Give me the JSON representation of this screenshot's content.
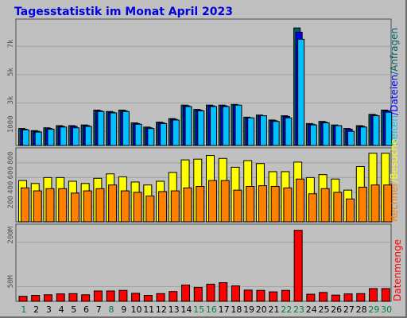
{
  "chart_data": {
    "type": "bar",
    "title": "Tagesstatistik im Monat April 2023",
    "x": [
      "1",
      "2",
      "3",
      "4",
      "5",
      "6",
      "7",
      "8",
      "9",
      "10",
      "11",
      "12",
      "13",
      "14",
      "15",
      "16",
      "17",
      "18",
      "19",
      "20",
      "21",
      "22",
      "23",
      "24",
      "25",
      "26",
      "27",
      "28",
      "29",
      "30"
    ],
    "weekend_days": [
      "1",
      "8",
      "15",
      "16",
      "22",
      "23",
      "29",
      "30"
    ],
    "colors": {
      "weekday": "#005050",
      "weekend": "#008040",
      "gridline": "#a0a0a0",
      "anfragen": "#006060",
      "dateien": "#0000ff",
      "seiten": "#00c0ff",
      "besuche": "#ffff00",
      "rechner": "#ff8000",
      "datenmenge": "#ff0000"
    },
    "panels": [
      {
        "id": "requests",
        "yticks": [
          {
            "v": 1000,
            "label": "1000"
          },
          {
            "v": 3000,
            "label": "3k"
          },
          {
            "v": 5000,
            "label": "5k"
          },
          {
            "v": 7000,
            "label": "7k"
          }
        ],
        "ymax": 8700,
        "legend": [
          "Anfragen",
          "/",
          "Dateien",
          "/",
          "Seiten"
        ],
        "series": [
          {
            "name": "Anfragen",
            "color": "#006060",
            "values": [
              1200,
              1050,
              1250,
              1400,
              1400,
              1450,
              2500,
              2400,
              2500,
              1600,
              1300,
              1650,
              1900,
              2850,
              2550,
              2850,
              2850,
              2900,
              2000,
              2150,
              1800,
              2100,
              8300,
              1550,
              1700,
              1450,
              1200,
              1400,
              2200,
              2500
            ]
          },
          {
            "name": "Dateien",
            "color": "#0000ff",
            "values": [
              1150,
              1000,
              1200,
              1350,
              1350,
              1400,
              2450,
              2350,
              2450,
              1550,
              1250,
              1600,
              1850,
              2800,
              2500,
              2800,
              2800,
              2850,
              1950,
              2100,
              1750,
              2050,
              8000,
              1500,
              1650,
              1400,
              1150,
              1350,
              2150,
              2450
            ]
          },
          {
            "name": "Seiten",
            "color": "#00c0ff",
            "values": [
              1100,
              950,
              1150,
              1300,
              1250,
              1350,
              2400,
              2300,
              2400,
              1500,
              1200,
              1550,
              1800,
              2750,
              2450,
              2750,
              2750,
              2850,
              1950,
              2100,
              1700,
              1950,
              7500,
              1450,
              1600,
              1400,
              1000,
              1300,
              2100,
              2350
            ]
          }
        ]
      },
      {
        "id": "visits",
        "yticks": [
          {
            "v": 200,
            "label": "200"
          },
          {
            "v": 400,
            "label": "400"
          },
          {
            "v": 600,
            "label": "600"
          },
          {
            "v": 800,
            "label": "800"
          }
        ],
        "ymax": 960,
        "legend": [
          "Besuche",
          "/",
          "Rechner"
        ],
        "series": [
          {
            "name": "Besuche",
            "color": "#ffff00",
            "values": [
              560,
              520,
              600,
              600,
              550,
              520,
              590,
              650,
              610,
              540,
              500,
              550,
              670,
              840,
              850,
              900,
              860,
              740,
              830,
              790,
              680,
              680,
              810,
              600,
              640,
              580,
              430,
              750,
              930,
              930
            ]
          },
          {
            "name": "Rechner",
            "color": "#ff8000",
            "values": [
              460,
              420,
              450,
              450,
              390,
              420,
              450,
              500,
              420,
              400,
              350,
              410,
              420,
              460,
              480,
              560,
              560,
              430,
              480,
              490,
              480,
              460,
              580,
              380,
              450,
              400,
              310,
              470,
              500,
              500
            ]
          }
        ]
      },
      {
        "id": "volume",
        "yticks": [
          {
            "v": 50,
            "label": "50M"
          },
          {
            "v": 200,
            "label": "200M"
          }
        ],
        "ymax": 250,
        "legend": [
          "Datenmenge"
        ],
        "series": [
          {
            "name": "Datenmenge",
            "color": "#ff0000",
            "values": [
              17,
              20,
              22,
              25,
              26,
              22,
              35,
              35,
              37,
              27,
              20,
              26,
              33,
              55,
              47,
              58,
              63,
              52,
              38,
              37,
              32,
              37,
              240,
              24,
              30,
              21,
              25,
              26,
              43,
              43
            ]
          }
        ]
      }
    ]
  }
}
